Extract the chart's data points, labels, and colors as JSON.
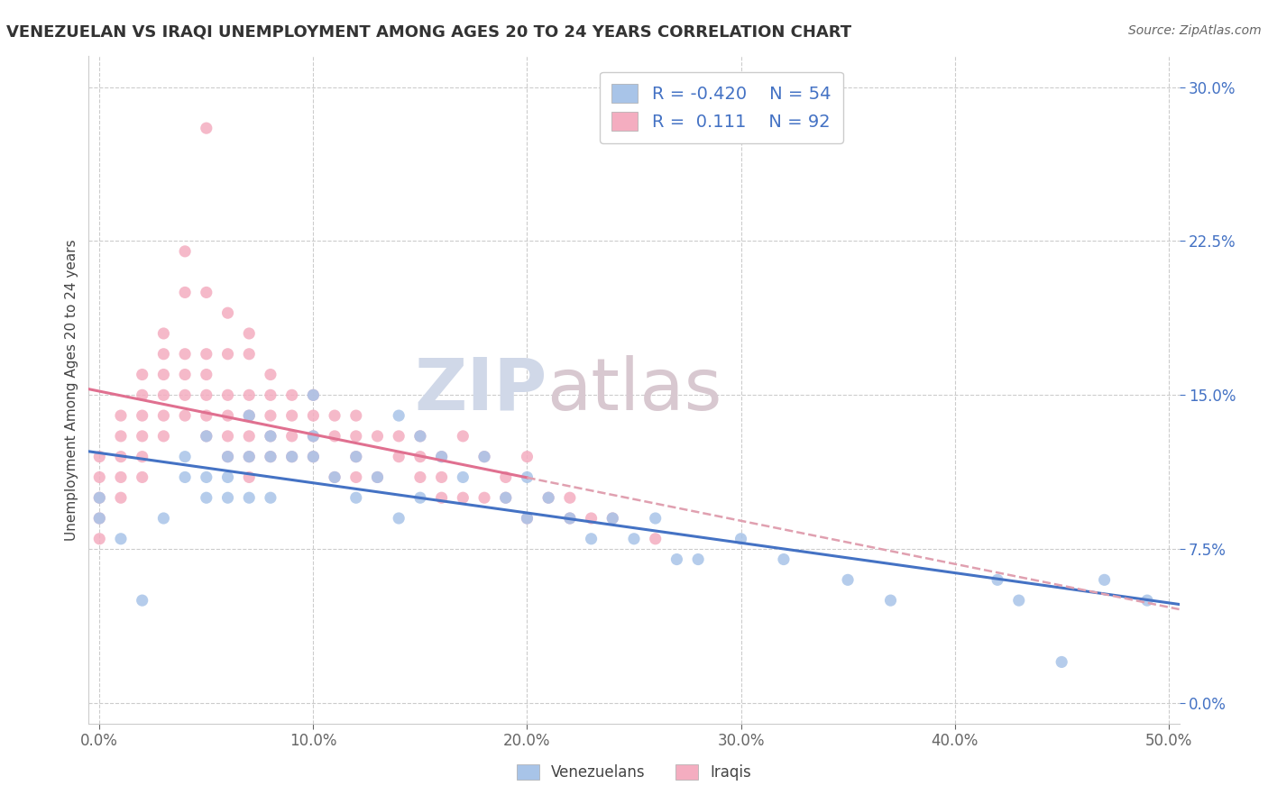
{
  "title": "VENEZUELAN VS IRAQI UNEMPLOYMENT AMONG AGES 20 TO 24 YEARS CORRELATION CHART",
  "source": "Source: ZipAtlas.com",
  "ylabel": "Unemployment Among Ages 20 to 24 years",
  "xlim": [
    -0.005,
    0.505
  ],
  "ylim": [
    -0.01,
    0.315
  ],
  "xticks": [
    0.0,
    0.1,
    0.2,
    0.3,
    0.4,
    0.5
  ],
  "xticklabels": [
    "0.0%",
    "10.0%",
    "20.0%",
    "30.0%",
    "40.0%",
    "50.0%"
  ],
  "yticks": [
    0.0,
    0.075,
    0.15,
    0.225,
    0.3
  ],
  "yticklabels": [
    "0.0%",
    "7.5%",
    "15.0%",
    "22.5%",
    "30.0%"
  ],
  "venezuelan_dot_color": "#a8c4e8",
  "iraqi_dot_color": "#f4adc0",
  "venezuelan_line_color": "#4472c4",
  "iraqi_line_color": "#e07090",
  "iraqi_line_dashed_color": "#e0a0b0",
  "R_venezuelan": -0.42,
  "N_venezuelan": 54,
  "R_iraqi": 0.111,
  "N_iraqi": 92,
  "legend_label_color": "#4472c4",
  "ytick_color": "#4472c4",
  "background_color": "#ffffff",
  "grid_color": "#cccccc",
  "title_fontsize": 13,
  "axis_label_fontsize": 11,
  "tick_fontsize": 12,
  "legend_fontsize": 14,
  "venezuelan_x": [
    0.0,
    0.0,
    0.01,
    0.02,
    0.03,
    0.04,
    0.04,
    0.05,
    0.05,
    0.05,
    0.06,
    0.06,
    0.06,
    0.07,
    0.07,
    0.07,
    0.08,
    0.08,
    0.08,
    0.09,
    0.1,
    0.1,
    0.1,
    0.11,
    0.12,
    0.12,
    0.13,
    0.14,
    0.14,
    0.15,
    0.15,
    0.16,
    0.17,
    0.18,
    0.19,
    0.2,
    0.2,
    0.21,
    0.22,
    0.23,
    0.24,
    0.25,
    0.26,
    0.27,
    0.28,
    0.3,
    0.32,
    0.35,
    0.37,
    0.42,
    0.43,
    0.45,
    0.47,
    0.49
  ],
  "venezuelan_y": [
    0.1,
    0.09,
    0.08,
    0.05,
    0.09,
    0.12,
    0.11,
    0.13,
    0.11,
    0.1,
    0.12,
    0.11,
    0.1,
    0.14,
    0.12,
    0.1,
    0.13,
    0.12,
    0.1,
    0.12,
    0.15,
    0.13,
    0.12,
    0.11,
    0.12,
    0.1,
    0.11,
    0.14,
    0.09,
    0.13,
    0.1,
    0.12,
    0.11,
    0.12,
    0.1,
    0.09,
    0.11,
    0.1,
    0.09,
    0.08,
    0.09,
    0.08,
    0.09,
    0.07,
    0.07,
    0.08,
    0.07,
    0.06,
    0.05,
    0.06,
    0.05,
    0.02,
    0.06,
    0.05
  ],
  "iraqi_x": [
    0.0,
    0.0,
    0.0,
    0.0,
    0.0,
    0.01,
    0.01,
    0.01,
    0.01,
    0.01,
    0.02,
    0.02,
    0.02,
    0.02,
    0.02,
    0.02,
    0.03,
    0.03,
    0.03,
    0.03,
    0.03,
    0.03,
    0.04,
    0.04,
    0.04,
    0.04,
    0.04,
    0.04,
    0.05,
    0.05,
    0.05,
    0.05,
    0.05,
    0.05,
    0.05,
    0.06,
    0.06,
    0.06,
    0.06,
    0.06,
    0.06,
    0.07,
    0.07,
    0.07,
    0.07,
    0.07,
    0.07,
    0.07,
    0.08,
    0.08,
    0.08,
    0.08,
    0.08,
    0.09,
    0.09,
    0.09,
    0.09,
    0.1,
    0.1,
    0.1,
    0.1,
    0.11,
    0.11,
    0.11,
    0.12,
    0.12,
    0.12,
    0.12,
    0.13,
    0.13,
    0.14,
    0.14,
    0.15,
    0.15,
    0.15,
    0.16,
    0.16,
    0.16,
    0.17,
    0.17,
    0.18,
    0.18,
    0.19,
    0.19,
    0.2,
    0.2,
    0.21,
    0.22,
    0.22,
    0.23,
    0.24,
    0.26
  ],
  "iraqi_y": [
    0.12,
    0.11,
    0.1,
    0.09,
    0.08,
    0.14,
    0.13,
    0.12,
    0.11,
    0.1,
    0.16,
    0.15,
    0.14,
    0.13,
    0.12,
    0.11,
    0.18,
    0.17,
    0.16,
    0.15,
    0.14,
    0.13,
    0.22,
    0.2,
    0.17,
    0.16,
    0.15,
    0.14,
    0.28,
    0.2,
    0.17,
    0.16,
    0.15,
    0.14,
    0.13,
    0.19,
    0.17,
    0.15,
    0.14,
    0.13,
    0.12,
    0.18,
    0.17,
    0.15,
    0.14,
    0.13,
    0.12,
    0.11,
    0.16,
    0.15,
    0.14,
    0.13,
    0.12,
    0.15,
    0.14,
    0.13,
    0.12,
    0.15,
    0.14,
    0.13,
    0.12,
    0.14,
    0.13,
    0.11,
    0.14,
    0.13,
    0.12,
    0.11,
    0.13,
    0.11,
    0.13,
    0.12,
    0.13,
    0.12,
    0.11,
    0.12,
    0.11,
    0.1,
    0.13,
    0.1,
    0.12,
    0.1,
    0.11,
    0.1,
    0.12,
    0.09,
    0.1,
    0.1,
    0.09,
    0.09,
    0.09,
    0.08
  ],
  "watermark_zip": "ZIP",
  "watermark_atlas": "atlas",
  "bottom_legend_labels": [
    "Venezuelans",
    "Iraqis"
  ]
}
